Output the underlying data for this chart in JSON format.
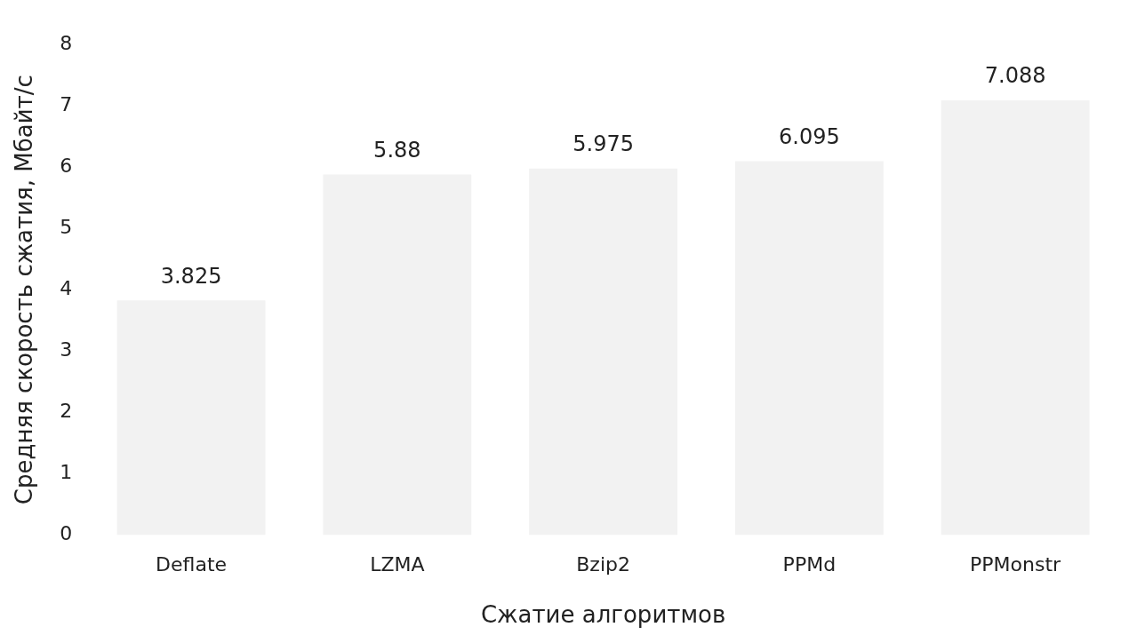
{
  "chart_data": {
    "type": "bar",
    "xlabel": "Сжатие алгоритмов",
    "ylabel": "Средняя скорость сжатия, Мбайт/с",
    "categories": [
      "Deflate",
      "LZMA",
      "Bzip2",
      "PPMd",
      "PPMonstr"
    ],
    "values": [
      3.825,
      5.88,
      5.975,
      6.095,
      7.088
    ],
    "color": "#f2f2f2",
    "ylim": [
      0,
      8
    ],
    "yticks": [
      0,
      1,
      2,
      3,
      4,
      5,
      6,
      7,
      8
    ],
    "grid": false,
    "legend": false,
    "data_labels": true
  }
}
